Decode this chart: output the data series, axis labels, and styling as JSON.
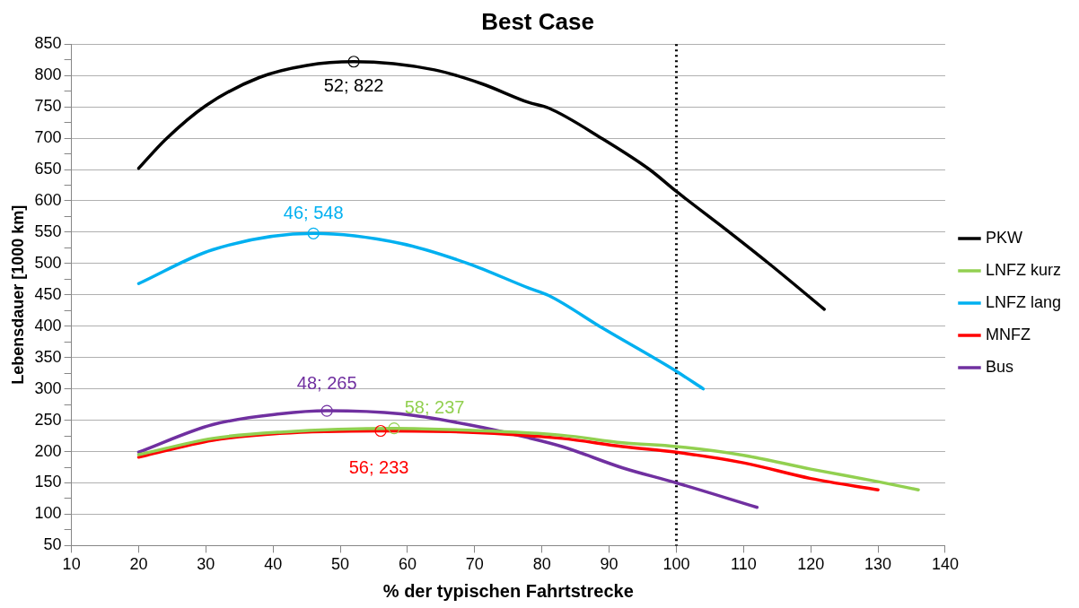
{
  "chart_data": {
    "type": "line",
    "title": "Best Case",
    "xlabel": "% der typischen Fahrtstrecke",
    "ylabel": "Lebensdauer [1000 km]",
    "xlim": [
      10,
      140
    ],
    "xticks": [
      10,
      20,
      30,
      40,
      50,
      60,
      70,
      80,
      90,
      100,
      110,
      120,
      130,
      140
    ],
    "ylim": [
      50,
      850
    ],
    "yticks": [
      50,
      {
        "value": 75,
        "label": null
      },
      100,
      {
        "value": 125,
        "label": null
      },
      150,
      {
        "value": 175,
        "label": null
      },
      200,
      {
        "value": 225,
        "label": null
      },
      250,
      {
        "value": 275,
        "label": null
      },
      300,
      {
        "value": 325,
        "label": null
      },
      350,
      {
        "value": 375,
        "label": null
      },
      400,
      {
        "value": 425,
        "label": null
      },
      450,
      {
        "value": 475,
        "label": null
      },
      500,
      {
        "value": 525,
        "label": null
      },
      550,
      {
        "value": 575,
        "label": null
      },
      600,
      {
        "value": 625,
        "label": null
      },
      650,
      {
        "value": 675,
        "label": null
      },
      700,
      {
        "value": 725,
        "label": null
      },
      750,
      {
        "value": 775,
        "label": null
      },
      800,
      {
        "value": 825,
        "label": null
      },
      850
    ],
    "grid": "y",
    "legend": "right",
    "marker": "none",
    "line_style": "solid",
    "series": [
      {
        "name": "PKW",
        "color": "#000000",
        "x": [
          20,
          24,
          30,
          38,
          45,
          52,
          64,
          71,
          78,
          81,
          89,
          96,
          100,
          108,
          114,
          122
        ],
        "values": [
          652,
          698,
          752,
          797,
          816,
          822,
          809,
          787,
          757,
          748,
          699,
          650,
          615,
          549,
          498,
          427
        ]
      },
      {
        "name": "LNFZ kurz",
        "color": "#92d050",
        "x": [
          20,
          31,
          41,
          58,
          69,
          83,
          92,
          100,
          110,
          120,
          130,
          136
        ],
        "values": [
          195,
          221,
          231,
          237,
          234,
          226,
          214,
          208,
          194,
          172,
          152,
          139
        ]
      },
      {
        "name": "LNFZ lang",
        "color": "#00b0f0",
        "x": [
          20,
          31,
          46,
          59,
          69,
          78,
          81,
          89,
          100,
          104
        ],
        "values": [
          468,
          522,
          548,
          532,
          500,
          461,
          449,
          397,
          328,
          300
        ]
      },
      {
        "name": "MNFZ",
        "color": "#ff0000",
        "x": [
          20,
          31,
          41,
          56,
          69,
          83,
          92,
          100,
          110,
          120,
          130
        ],
        "values": [
          191,
          218,
          229,
          233,
          231,
          221,
          208,
          199,
          182,
          157,
          139
        ]
      },
      {
        "name": "Bus",
        "color": "#7030a0",
        "x": [
          20,
          31,
          41,
          48,
          59,
          69,
          78,
          83,
          92,
          100,
          112
        ],
        "values": [
          199,
          243,
          260,
          265,
          260,
          243,
          222,
          208,
          174,
          150,
          111
        ]
      }
    ],
    "annotations": [
      {
        "text": "52; 822",
        "x": 52,
        "y": 822
      },
      {
        "text": "58; 237",
        "x": 58,
        "y": 237
      },
      {
        "text": "46; 548",
        "x": 46,
        "y": 548
      },
      {
        "text": "56; 233",
        "x": 56,
        "y": 233
      },
      {
        "text": "48; 265",
        "x": 48,
        "y": 265
      }
    ],
    "ref_lines": [
      {
        "axis": "x",
        "value": 100,
        "color": "#000000",
        "line_style": "dotted"
      }
    ]
  }
}
